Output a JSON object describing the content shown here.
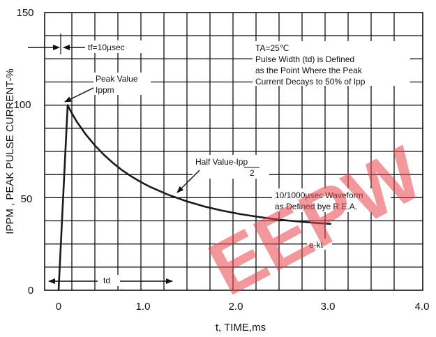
{
  "chart_data": {
    "type": "line",
    "xlabel": "t, TIME,ms",
    "ylabel": "IPPM , PEAK PULSE CURRENT-%",
    "xlim": [
      0,
      4.0
    ],
    "ylim": [
      0,
      150
    ],
    "x_ticks": [
      "0",
      "1.0",
      "2.0",
      "3.0",
      "4.0"
    ],
    "y_ticks": [
      "0",
      "50",
      "100",
      "150"
    ],
    "grid": true,
    "series": [
      {
        "x": [
          0.0,
          0.01,
          0.02,
          0.03,
          0.04,
          0.06,
          0.08,
          0.1,
          0.12,
          0.15,
          0.2,
          0.3,
          0.4,
          0.5,
          0.6,
          0.7,
          0.8,
          0.9,
          1.0,
          1.2,
          1.4,
          1.6,
          1.8,
          2.0,
          2.2,
          2.4,
          2.6,
          2.8,
          3.0
        ],
        "y": [
          0,
          10,
          20,
          30,
          40,
          60,
          80,
          100,
          98,
          95.3,
          91.1,
          84.1,
          78.2,
          73.1,
          68.7,
          64.8,
          61.5,
          58.6,
          56.0,
          51.7,
          48.2,
          45.3,
          43.0,
          41.1,
          39.6,
          38.3,
          37.3,
          36.5,
          35.8
        ]
      }
    ],
    "annotations": {
      "tf": "tf=10µsec",
      "ta_lines": [
        "TA=25℃",
        "Pulse Width (td) is Defined",
        "as the Point Where the Peak",
        "Current Decays to 50% of Ipp"
      ],
      "peak_lines": [
        "Peak Value",
        "Ippm"
      ],
      "half_value": "Half Value-Ipp",
      "half_value_den": "2",
      "waveform_lines": [
        "10/1000µsec Waveform",
        "as Defined bye R.E.A."
      ],
      "ekt": "e-kt",
      "td": "td"
    },
    "watermark": "EEPW",
    "colors": {
      "curve": "#1a1a1a",
      "grid": "#111111",
      "watermark": "#e8454e"
    }
  }
}
